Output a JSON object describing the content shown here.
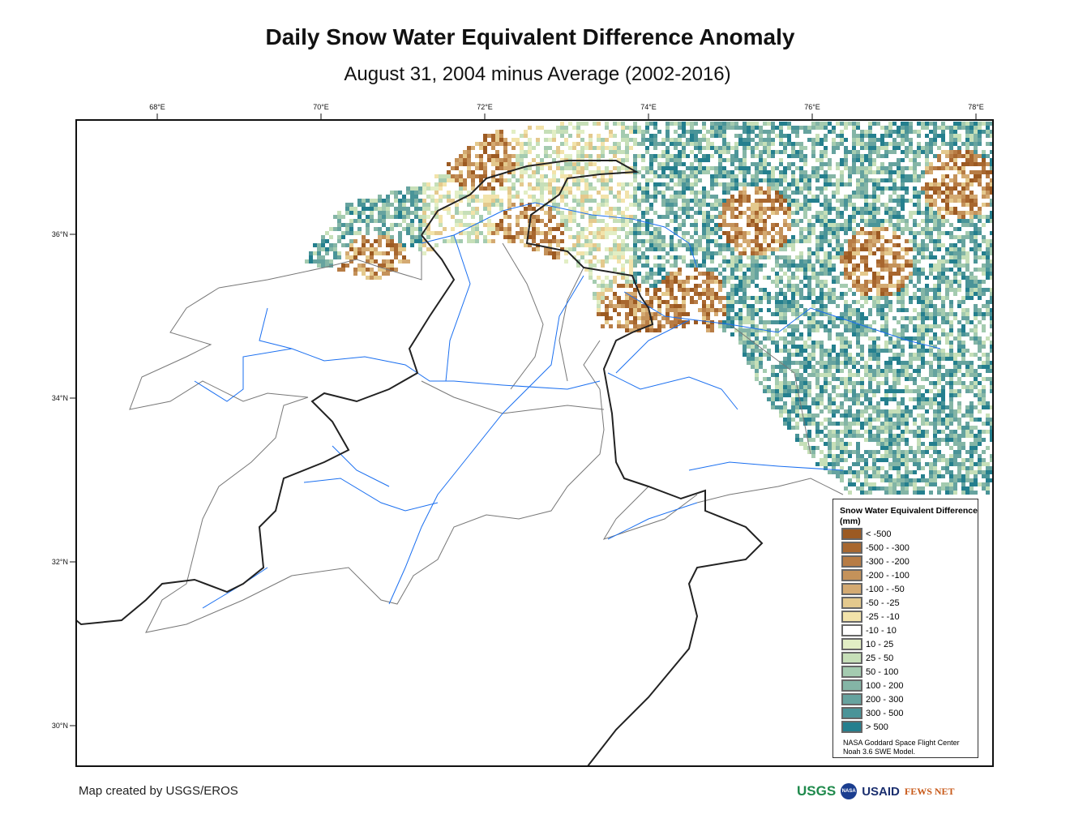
{
  "title": "Daily Snow Water Equivalent Difference Anomaly",
  "subtitle": "August 31, 2004 minus Average (2002-2016)",
  "map": {
    "lon_ticks": [
      "68°E",
      "70°E",
      "72°E",
      "74°E",
      "76°E",
      "78°E"
    ],
    "lat_ticks": [
      "36°N",
      "34°N",
      "32°N",
      "30°N"
    ]
  },
  "legend": {
    "title": "Snow Water Equivalent Difference (mm)",
    "items": [
      {
        "label": "< -500",
        "color": "#9c5a22"
      },
      {
        "label": "-500 - -300",
        "color": "#a8672f"
      },
      {
        "label": "-300 - -200",
        "color": "#b77c45"
      },
      {
        "label": "-200 - -100",
        "color": "#c4925a"
      },
      {
        "label": "-100 - -50",
        "color": "#d4aa72"
      },
      {
        "label": "-50 - -25",
        "color": "#e4c98d"
      },
      {
        "label": "-25 - -10",
        "color": "#f2e3aa"
      },
      {
        "label": "-10 - 10",
        "color": "#ffffff"
      },
      {
        "label": "10 - 25",
        "color": "#e2eec4"
      },
      {
        "label": "25 - 50",
        "color": "#c6dfb8"
      },
      {
        "label": "50 - 100",
        "color": "#a4cbb0"
      },
      {
        "label": "100 - 200",
        "color": "#84b5a6"
      },
      {
        "label": "200 - 300",
        "color": "#66a39f"
      },
      {
        "label": "300 - 500",
        "color": "#4a9498"
      },
      {
        "label": "> 500",
        "color": "#247f8e"
      }
    ],
    "source": [
      "NASA Goddard Space Flight Center",
      "Noah 3.6 SWE Model."
    ]
  },
  "credit": "Map created by USGS/EROS",
  "logos": [
    "USGS",
    "NASA",
    "USAID",
    "FEWS NET"
  ]
}
